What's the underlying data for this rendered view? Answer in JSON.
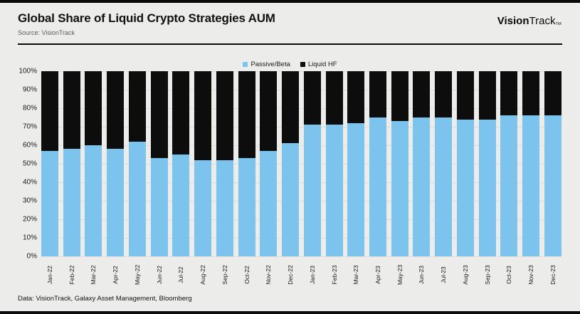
{
  "header": {
    "title": "Global Share of Liquid Crypto Strategies AUM",
    "source": "Source: VisionTrack",
    "logo_bold": "Vision",
    "logo_regular": "Track",
    "logo_tm": "TM"
  },
  "footer": {
    "text": "Data: VisionTrack, Galaxy Asset Management, Bloomberg"
  },
  "colors": {
    "passive_beta": "#7cc4ed",
    "liquid_hf": "#0d0d0d",
    "background": "#ececea",
    "frame": "#0a0a0a"
  },
  "chart_data": {
    "type": "bar",
    "stacked": true,
    "normalized_percent": true,
    "title": "Global Share of Liquid Crypto Strategies AUM",
    "xlabel": "",
    "ylabel": "",
    "ylim": [
      0,
      100
    ],
    "grid": true,
    "legend_position": "top-center",
    "y_ticks": [
      "100%",
      "90%",
      "80%",
      "70%",
      "60%",
      "50%",
      "40%",
      "30%",
      "20%",
      "10%",
      "0%"
    ],
    "categories": [
      "Jan-22",
      "Feb-22",
      "Mar-22",
      "Apr-22",
      "May-22",
      "Jun-22",
      "Jul-22",
      "Aug-22",
      "Sep-22",
      "Oct-22",
      "Nov-22",
      "Dec-22",
      "Jan-23",
      "Feb-23",
      "Mar-23",
      "Apr-23",
      "May-23",
      "Jun-23",
      "Jul-23",
      "Aug-23",
      "Sep-23",
      "Oct-23",
      "Nov-23",
      "Dec-23"
    ],
    "series": [
      {
        "name": "Passive/Beta",
        "color": "#7cc4ed",
        "values": [
          57,
          58,
          60,
          58,
          62,
          53,
          55,
          52,
          52,
          53,
          57,
          61,
          71,
          71,
          72,
          75,
          73,
          75,
          75,
          74,
          74,
          76,
          76,
          76
        ]
      },
      {
        "name": "Liquid HF",
        "color": "#0d0d0d",
        "values": [
          43,
          42,
          40,
          42,
          38,
          47,
          45,
          48,
          48,
          47,
          43,
          39,
          29,
          29,
          28,
          25,
          27,
          25,
          25,
          26,
          26,
          24,
          24,
          24
        ]
      }
    ]
  }
}
